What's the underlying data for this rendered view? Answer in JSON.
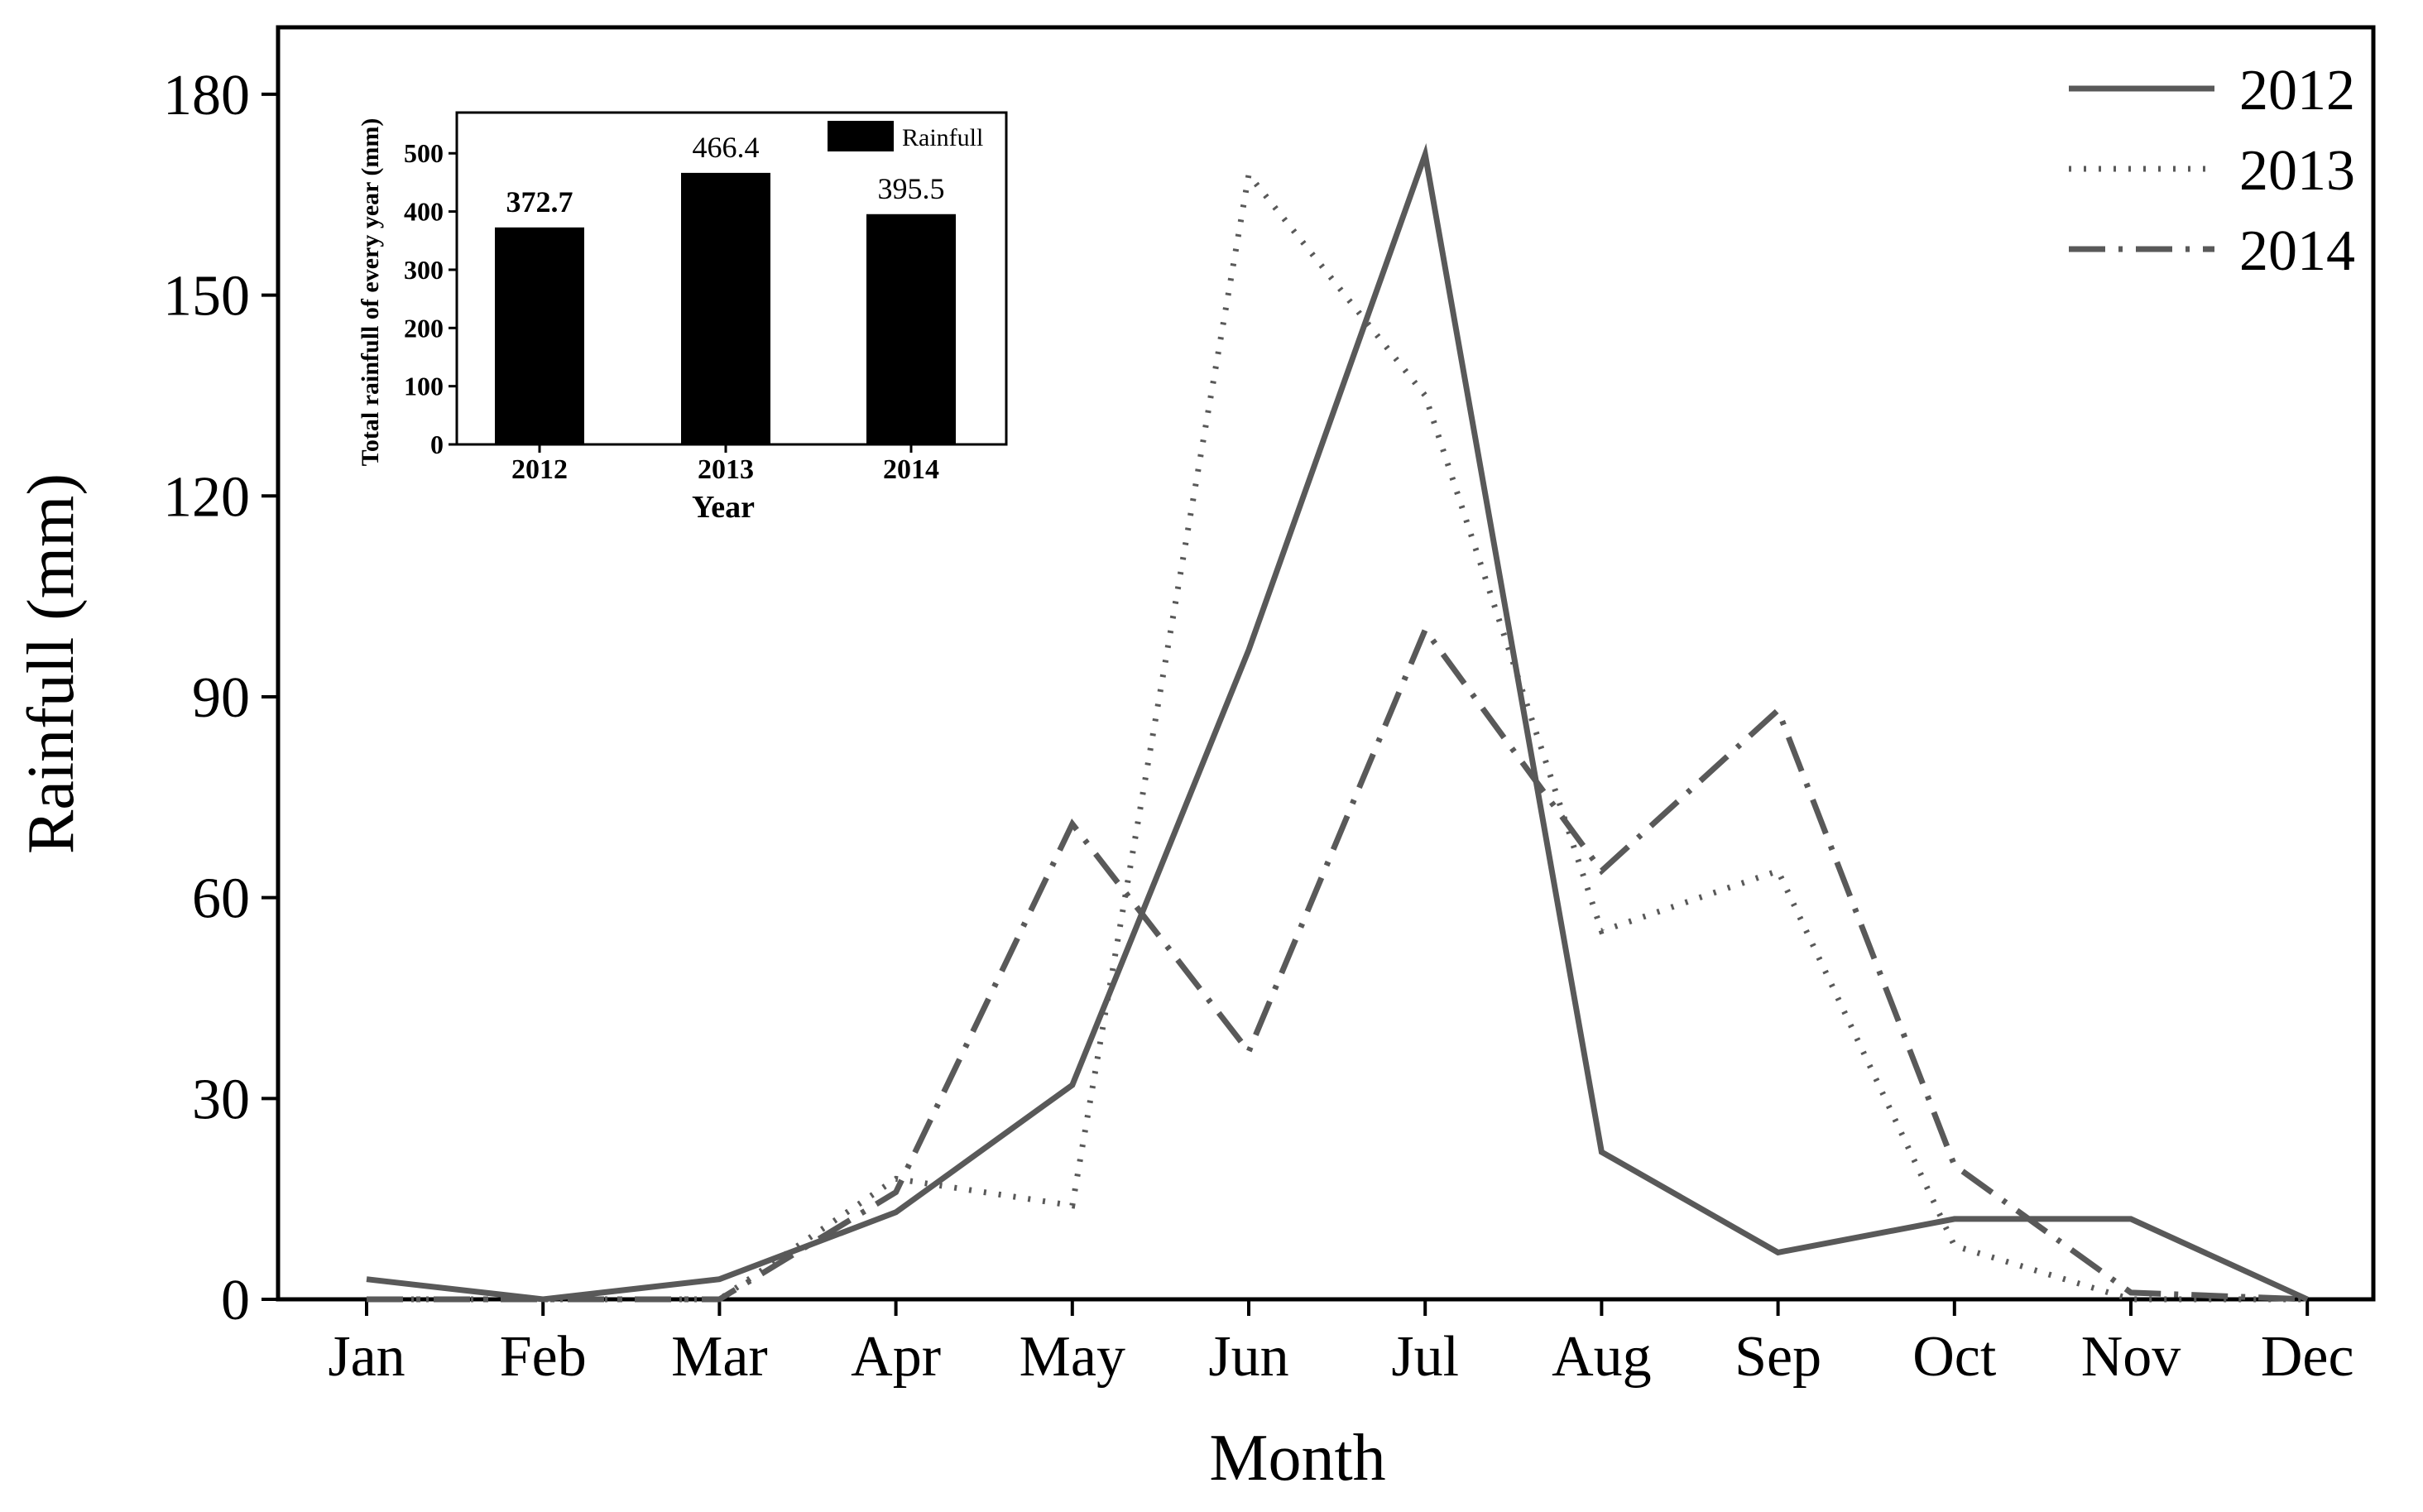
{
  "chart_data": [
    {
      "type": "line",
      "categories": [
        "Jan",
        "Feb",
        "Mar",
        "Apr",
        "May",
        "Jun",
        "Jul",
        "Aug",
        "Sep",
        "Oct",
        "Nov",
        "Dec"
      ],
      "xlabel": "Month",
      "ylabel": "Rainfull (mm)",
      "ylim": [
        0,
        190
      ],
      "yticks": [
        0,
        30,
        60,
        90,
        120,
        150,
        180
      ],
      "grid": false,
      "legend_position": "top-right",
      "series": [
        {
          "name": "2012",
          "style": "solid",
          "values": [
            3,
            0,
            3,
            13,
            32,
            97,
            171,
            22,
            7,
            12,
            12,
            0
          ]
        },
        {
          "name": "2013",
          "style": "dotted",
          "values": [
            0,
            0,
            0,
            18,
            14,
            168,
            135,
            55,
            64,
            8,
            0,
            0
          ]
        },
        {
          "name": "2014",
          "style": "dash-dot",
          "values": [
            0,
            0,
            0,
            16,
            71,
            37,
            100,
            64,
            88,
            20,
            1,
            0
          ]
        }
      ],
      "colors": {
        "line": "#595959",
        "axis": "#000000"
      }
    },
    {
      "type": "bar",
      "categories": [
        "2012",
        "2013",
        "2014"
      ],
      "values": [
        372.7,
        466.4,
        395.5
      ],
      "data_labels": [
        "372.7",
        "466.4",
        "395.5"
      ],
      "xlabel": "Year",
      "ylabel": "Total rainfull of every year (mm)",
      "ylim": [
        0,
        570
      ],
      "yticks": [
        0,
        100,
        200,
        300,
        400,
        500
      ],
      "legend": "Rainfull",
      "legend_position": "top-right",
      "colors": {
        "bar": "#000000"
      }
    }
  ]
}
